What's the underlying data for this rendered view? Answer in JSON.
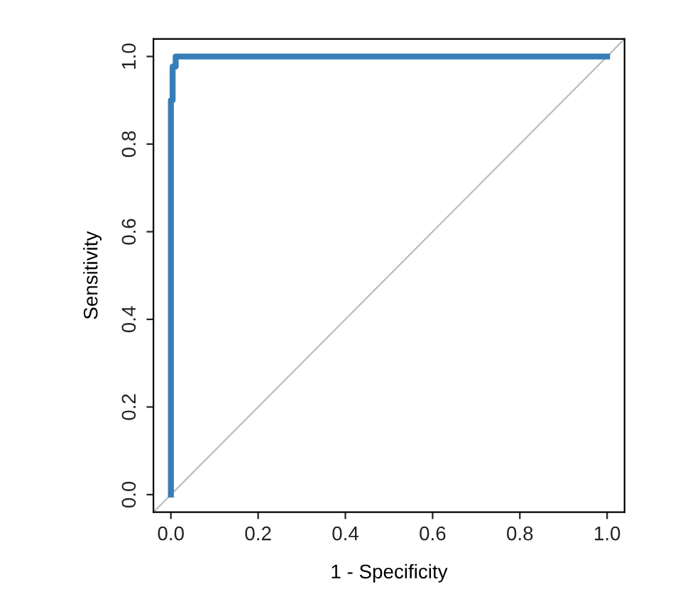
{
  "chart_data": {
    "type": "step",
    "xlabel": "1 - Specificity",
    "ylabel": "Sensitivity",
    "xlim": [
      -0.04,
      1.04
    ],
    "ylim": [
      -0.04,
      1.04
    ],
    "xticks": [
      {
        "value": 0,
        "label": "0.0"
      },
      {
        "value": 0.2,
        "label": "0.2"
      },
      {
        "value": 0.4,
        "label": "0.4"
      },
      {
        "value": 0.6,
        "label": "0.6"
      },
      {
        "value": 0.8,
        "label": "0.8"
      },
      {
        "value": 1,
        "label": "1.0"
      }
    ],
    "yticks": [
      {
        "value": 0,
        "label": "0.0"
      },
      {
        "value": 0.2,
        "label": "0.2"
      },
      {
        "value": 0.4,
        "label": "0.4"
      },
      {
        "value": 0.6,
        "label": "0.6"
      },
      {
        "value": 0.8,
        "label": "0.8"
      },
      {
        "value": 1,
        "label": "1.0"
      }
    ],
    "grid": false,
    "series": [
      {
        "type": "line",
        "color": "#bebebe",
        "x": [
          -0.04,
          1.04
        ],
        "values": [
          -0.04,
          1.04
        ]
      },
      {
        "color": "#377eb8",
        "x": [
          0,
          0,
          0.004,
          0.004,
          0.011,
          0.011,
          1
        ],
        "values": [
          0,
          0.9,
          0.9,
          0.977,
          0.977,
          1,
          1
        ]
      }
    ]
  }
}
